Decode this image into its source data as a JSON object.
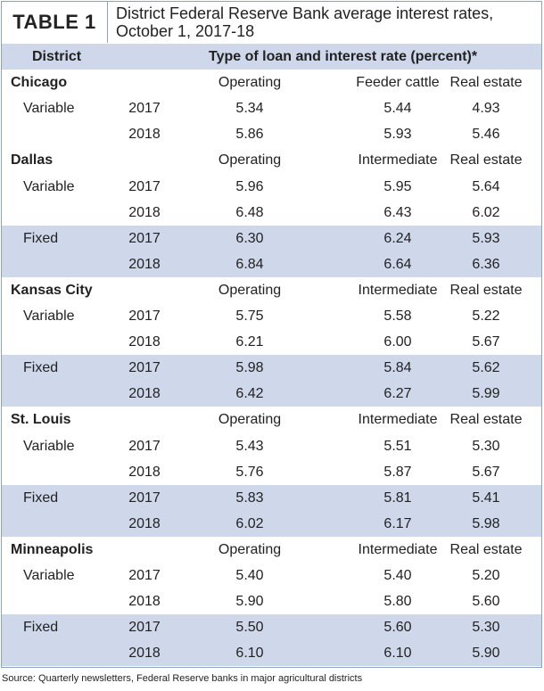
{
  "header": {
    "label": "TABLE 1",
    "title": "District Federal Reserve Bank average interest rates, October 1, 2017-18"
  },
  "table": {
    "columns": [
      "District",
      "Type of loan and interest rate (percent)*"
    ],
    "districts": [
      {
        "name": "Chicago",
        "loan_types": [
          "Operating",
          "Feeder cattle",
          "Real estate"
        ],
        "groups": [
          {
            "rate_type": "Variable",
            "rows": [
              {
                "year": "2017",
                "rates": [
                  "5.34",
                  "5.44",
                  "4.93"
                ]
              },
              {
                "year": "2018",
                "rates": [
                  "5.86",
                  "5.93",
                  "5.46"
                ]
              }
            ]
          }
        ]
      },
      {
        "name": "Dallas",
        "loan_types": [
          "Operating",
          "Intermediate",
          "Real estate"
        ],
        "groups": [
          {
            "rate_type": "Variable",
            "rows": [
              {
                "year": "2017",
                "rates": [
                  "5.96",
                  "5.95",
                  "5.64"
                ]
              },
              {
                "year": "2018",
                "rates": [
                  "6.48",
                  "6.43",
                  "6.02"
                ]
              }
            ]
          },
          {
            "rate_type": "Fixed",
            "rows": [
              {
                "year": "2017",
                "rates": [
                  "6.30",
                  "6.24",
                  "5.93"
                ]
              },
              {
                "year": "2018",
                "rates": [
                  "6.84",
                  "6.64",
                  "6.36"
                ]
              }
            ]
          }
        ]
      },
      {
        "name": "Kansas City",
        "loan_types": [
          "Operating",
          "Intermediate",
          "Real estate"
        ],
        "groups": [
          {
            "rate_type": "Variable",
            "rows": [
              {
                "year": "2017",
                "rates": [
                  "5.75",
                  "5.58",
                  "5.22"
                ]
              },
              {
                "year": "2018",
                "rates": [
                  "6.21",
                  "6.00",
                  "5.67"
                ]
              }
            ]
          },
          {
            "rate_type": "Fixed",
            "rows": [
              {
                "year": "2017",
                "rates": [
                  "5.98",
                  "5.84",
                  "5.62"
                ]
              },
              {
                "year": "2018",
                "rates": [
                  "6.42",
                  "6.27",
                  "5.99"
                ]
              }
            ]
          }
        ]
      },
      {
        "name": "St. Louis",
        "loan_types": [
          "Operating",
          "Intermediate",
          "Real estate"
        ],
        "groups": [
          {
            "rate_type": "Variable",
            "rows": [
              {
                "year": "2017",
                "rates": [
                  "5.43",
                  "5.51",
                  "5.30"
                ]
              },
              {
                "year": "2018",
                "rates": [
                  "5.76",
                  "5.87",
                  "5.67"
                ]
              }
            ]
          },
          {
            "rate_type": "Fixed",
            "rows": [
              {
                "year": "2017",
                "rates": [
                  "5.83",
                  "5.81",
                  "5.41"
                ]
              },
              {
                "year": "2018",
                "rates": [
                  "6.02",
                  "6.17",
                  "5.98"
                ]
              }
            ]
          }
        ]
      },
      {
        "name": "Minneapolis",
        "loan_types": [
          "Operating",
          "Intermediate",
          "Real estate"
        ],
        "groups": [
          {
            "rate_type": "Variable",
            "rows": [
              {
                "year": "2017",
                "rates": [
                  "5.40",
                  "5.40",
                  "5.20"
                ]
              },
              {
                "year": "2018",
                "rates": [
                  "5.90",
                  "5.80",
                  "5.60"
                ]
              }
            ]
          },
          {
            "rate_type": "Fixed",
            "rows": [
              {
                "year": "2017",
                "rates": [
                  "5.50",
                  "5.60",
                  "5.30"
                ]
              },
              {
                "year": "2018",
                "rates": [
                  "6.10",
                  "6.10",
                  "5.90"
                ]
              }
            ]
          }
        ]
      }
    ]
  },
  "source": "Source: Quarterly newsletters, Federal Reserve banks in major agricultural districts"
}
